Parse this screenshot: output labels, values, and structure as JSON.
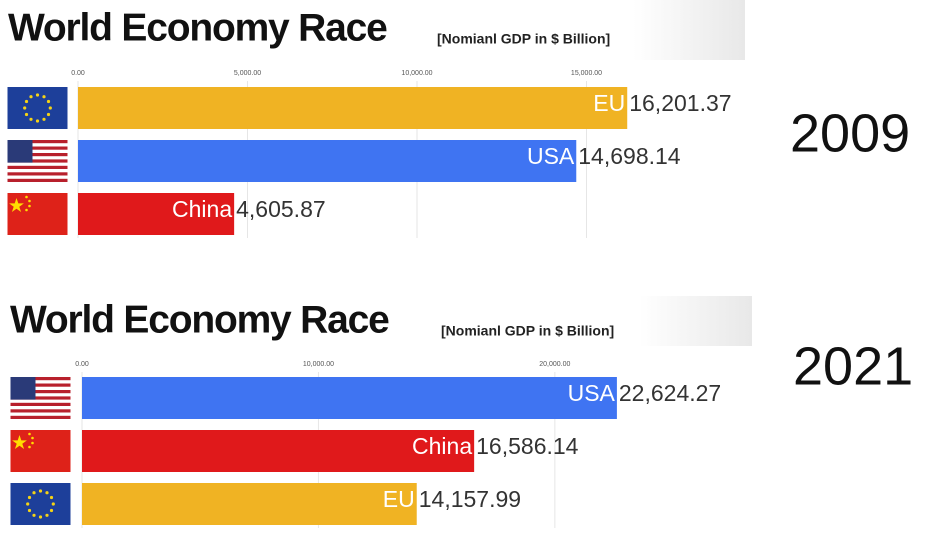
{
  "chart_data": [
    {
      "type": "bar",
      "orientation": "horizontal",
      "title": "World Economy Race",
      "subtitle": "[Nomianl GDP in $ Billion]",
      "year_label": "2009",
      "categories": [
        "EU",
        "USA",
        "China"
      ],
      "values": [
        16201.37,
        14698.14,
        4605.87
      ],
      "value_labels": [
        "16,201.37",
        "14,698.14",
        "4,605.87"
      ],
      "colors": [
        "#f0b323",
        "#3f74f2",
        "#e0191b"
      ],
      "xlim": [
        0,
        20000
      ],
      "xticks": [
        {
          "value": 0,
          "label": "0.00"
        },
        {
          "value": 5000,
          "label": "5,000.00"
        },
        {
          "value": 10000,
          "label": "10,000.00"
        },
        {
          "value": 15000,
          "label": "15,000.00"
        }
      ],
      "grid": true
    },
    {
      "type": "bar",
      "orientation": "horizontal",
      "title": "World Economy Race",
      "subtitle": "[Nomianl GDP in $ Billion]",
      "year_label": "2021",
      "categories": [
        "USA",
        "China",
        "EU"
      ],
      "values": [
        22624.27,
        16586.14,
        14157.99
      ],
      "value_labels": [
        "22,624.27",
        "16,586.14",
        "14,157.99"
      ],
      "colors": [
        "#3f74f2",
        "#e0191b",
        "#f0b323"
      ],
      "xlim": [
        0,
        28000
      ],
      "xticks": [
        {
          "value": 0,
          "label": "0.00"
        },
        {
          "value": 10000,
          "label": "10,000.00"
        },
        {
          "value": 20000,
          "label": "20,000.00"
        }
      ],
      "grid": true
    }
  ]
}
